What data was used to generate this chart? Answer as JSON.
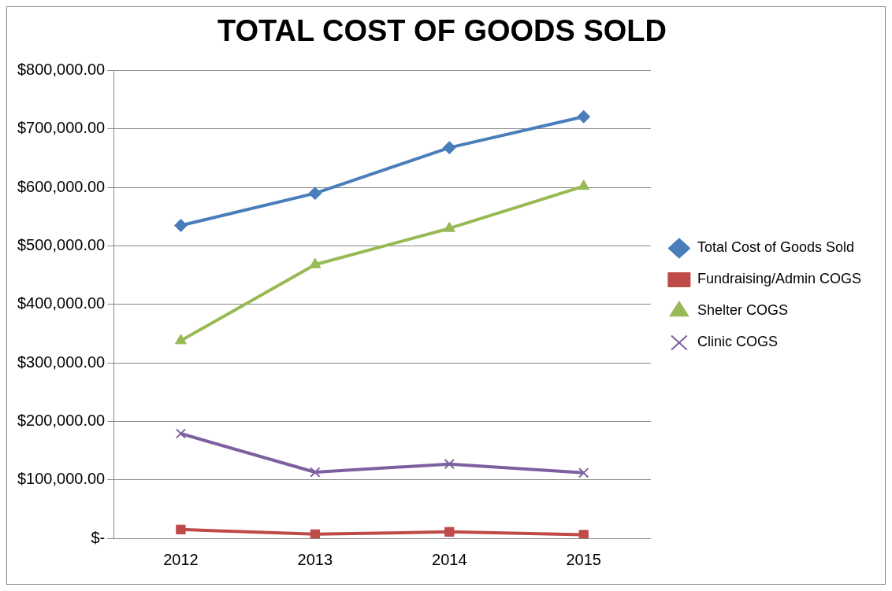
{
  "chart_data": {
    "type": "line",
    "title": "TOTAL COST OF GOODS SOLD",
    "categories": [
      "2012",
      "2013",
      "2014",
      "2015"
    ],
    "series": [
      {
        "name": "Total Cost of Goods Sold",
        "color": "#4a7ebb",
        "marker": "diamond",
        "values": [
          535000,
          590000,
          668000,
          721000
        ]
      },
      {
        "name": "Fundraising/Admin COGS",
        "color": "#be4b48",
        "marker": "square",
        "values": [
          15000,
          7000,
          11000,
          6000
        ]
      },
      {
        "name": "Shelter COGS",
        "color": "#98b954",
        "marker": "triangle",
        "values": [
          338000,
          468000,
          530000,
          602000
        ]
      },
      {
        "name": "Clinic COGS",
        "color": "#7d60a0",
        "marker": "cross",
        "values": [
          179000,
          113000,
          127000,
          112000
        ]
      }
    ],
    "ylim": [
      0,
      800000
    ],
    "yticks": [
      {
        "value": 0,
        "label": "$-"
      },
      {
        "value": 100000,
        "label": "$100,000.00"
      },
      {
        "value": 200000,
        "label": "$200,000.00"
      },
      {
        "value": 300000,
        "label": "$300,000.00"
      },
      {
        "value": 400000,
        "label": "$400,000.00"
      },
      {
        "value": 500000,
        "label": "$500,000.00"
      },
      {
        "value": 600000,
        "label": "$600,000.00"
      },
      {
        "value": 700000,
        "label": "$700,000.00"
      },
      {
        "value": 800000,
        "label": "$800,000.00"
      }
    ],
    "grid": "y",
    "legend": "right",
    "line_style": "solid"
  }
}
